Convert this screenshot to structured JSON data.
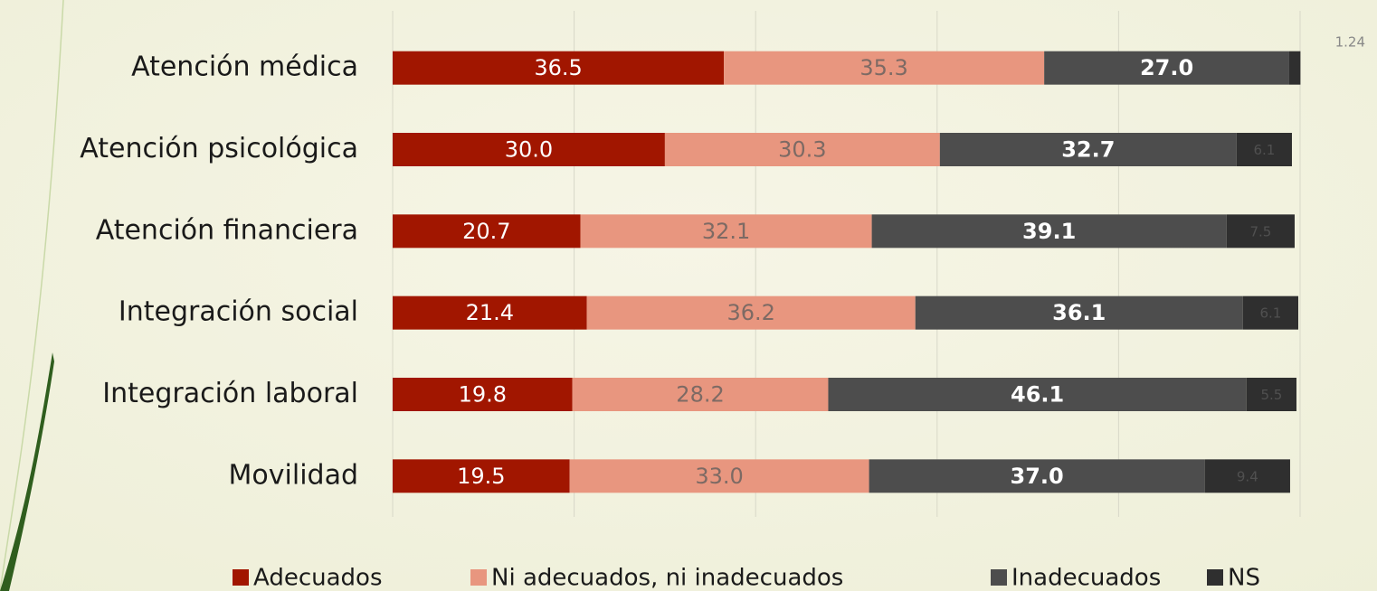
{
  "chart_data": {
    "type": "stacked_bar_horizontal",
    "categories": [
      "Atención médica",
      "Atención psicológica",
      "Atención financiera",
      "Integración social",
      "Integración laboral",
      "Movilidad"
    ],
    "series": [
      {
        "name": "Adecuados",
        "color": "#a11600",
        "values": [
          36.5,
          30.0,
          20.7,
          21.4,
          19.8,
          19.5
        ],
        "value_labels": [
          "36.5",
          "30.0",
          "20.7",
          "21.4",
          "19.8",
          "19.5"
        ]
      },
      {
        "name": "Ni adecuados, ni inadecuados",
        "color": "#e8967f",
        "values": [
          35.3,
          30.3,
          32.1,
          36.2,
          28.2,
          33.0
        ],
        "value_labels": [
          "35.3",
          "30.3",
          "32.1",
          "36.2",
          "28.2",
          "33.0"
        ]
      },
      {
        "name": "Inadecuados",
        "color": "#4d4d4d",
        "values": [
          27.0,
          32.7,
          39.1,
          36.1,
          46.1,
          37.0
        ],
        "value_labels": [
          "27.0",
          "32.7",
          "39.1",
          "36.1",
          "46.1",
          "37.0"
        ]
      },
      {
        "name": "NS",
        "color": "#2f2f2f",
        "values": [
          1.24,
          6.1,
          7.5,
          6.1,
          5.5,
          9.4
        ],
        "value_labels": [
          "1.24",
          "6.1",
          "7.5",
          "6.1",
          "5.5",
          "9.4"
        ]
      }
    ],
    "xlim": [
      0,
      100
    ],
    "xticks": [
      0,
      20,
      40,
      60,
      80,
      100
    ],
    "grid": true,
    "legend": "bottom"
  }
}
